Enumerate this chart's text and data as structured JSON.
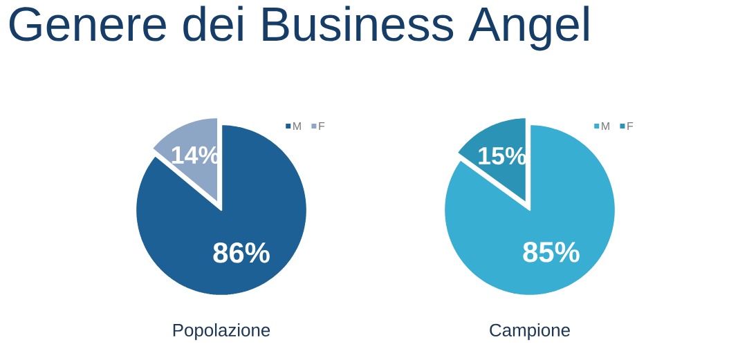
{
  "chart_data": [
    {
      "type": "pie",
      "title": "Genere dei Business Angel",
      "xlabel": "Popolazione",
      "categories": [
        "M",
        "F"
      ],
      "values": [
        86,
        14
      ],
      "colors": [
        "#1d6096",
        "#8ea6c6"
      ],
      "value_labels": [
        "86%",
        "14%"
      ],
      "legend": "top right"
    },
    {
      "type": "pie",
      "xlabel": "Campione",
      "categories": [
        "M",
        "F"
      ],
      "values": [
        85,
        15
      ],
      "colors": [
        "#38afd2",
        "#2b94b6"
      ],
      "value_labels": [
        "85%",
        "15%"
      ],
      "legend": "top right"
    }
  ]
}
